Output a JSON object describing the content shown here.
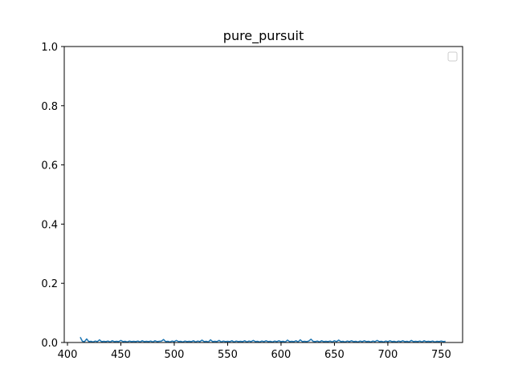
{
  "chart_data": {
    "type": "line",
    "title": "pure_pursuit",
    "xlabel": "",
    "ylabel": "",
    "xlim": [
      397,
      770
    ],
    "ylim": [
      0,
      1.0
    ],
    "x_ticks": [
      400,
      450,
      500,
      550,
      600,
      650,
      700,
      750
    ],
    "y_ticks": [
      0.0,
      0.2,
      0.4,
      0.6,
      0.8,
      1.0
    ],
    "y_tick_labels": [
      "0.0",
      "0.2",
      "0.4",
      "0.6",
      "0.8",
      "1.0"
    ],
    "grid": false,
    "legend": "upper right, empty",
    "series": [
      {
        "color": "#1f77b4",
        "x": [
          412,
          414,
          416,
          418,
          420,
          422,
          424,
          426,
          428,
          430,
          432,
          434,
          436,
          438,
          440,
          442,
          444,
          446,
          448,
          450,
          452,
          454,
          456,
          458,
          460,
          462,
          464,
          466,
          468,
          470,
          472,
          474,
          476,
          478,
          480,
          482,
          484,
          486,
          488,
          490,
          492,
          494,
          496,
          498,
          500,
          502,
          504,
          506,
          508,
          510,
          512,
          514,
          516,
          518,
          520,
          522,
          524,
          526,
          528,
          530,
          532,
          534,
          536,
          538,
          540,
          542,
          544,
          546,
          548,
          550,
          552,
          554,
          556,
          558,
          560,
          562,
          564,
          566,
          568,
          570,
          572,
          574,
          576,
          578,
          580,
          582,
          584,
          586,
          588,
          590,
          592,
          594,
          596,
          598,
          600,
          602,
          604,
          606,
          608,
          610,
          612,
          614,
          616,
          618,
          620,
          622,
          624,
          626,
          628,
          630,
          632,
          634,
          636,
          638,
          640,
          642,
          644,
          646,
          648,
          650,
          652,
          654,
          656,
          658,
          660,
          662,
          664,
          666,
          668,
          670,
          672,
          674,
          676,
          678,
          680,
          682,
          684,
          686,
          688,
          690,
          692,
          694,
          696,
          698,
          700,
          702,
          704,
          706,
          708,
          710,
          712,
          714,
          716,
          718,
          720,
          722,
          724,
          726,
          728,
          730,
          732,
          734,
          736,
          738,
          740,
          742,
          744,
          746,
          748,
          750,
          752,
          754
        ],
        "y": [
          0.018,
          0.004,
          0.003,
          0.012,
          0.003,
          0.004,
          0.002,
          0.005,
          0.003,
          0.009,
          0.003,
          0.004,
          0.003,
          0.005,
          0.002,
          0.006,
          0.003,
          0.004,
          0.003,
          0.007,
          0.003,
          0.004,
          0.002,
          0.005,
          0.003,
          0.004,
          0.003,
          0.005,
          0.002,
          0.006,
          0.003,
          0.004,
          0.003,
          0.005,
          0.002,
          0.006,
          0.003,
          0.004,
          0.005,
          0.01,
          0.003,
          0.004,
          0.002,
          0.005,
          0.003,
          0.007,
          0.003,
          0.004,
          0.002,
          0.005,
          0.003,
          0.004,
          0.003,
          0.006,
          0.002,
          0.005,
          0.003,
          0.008,
          0.003,
          0.004,
          0.002,
          0.009,
          0.003,
          0.004,
          0.003,
          0.007,
          0.002,
          0.005,
          0.003,
          0.004,
          0.003,
          0.006,
          0.002,
          0.005,
          0.003,
          0.004,
          0.003,
          0.006,
          0.002,
          0.005,
          0.003,
          0.007,
          0.003,
          0.004,
          0.002,
          0.005,
          0.003,
          0.006,
          0.003,
          0.004,
          0.002,
          0.005,
          0.003,
          0.006,
          0.003,
          0.004,
          0.002,
          0.008,
          0.003,
          0.004,
          0.003,
          0.006,
          0.002,
          0.009,
          0.003,
          0.004,
          0.003,
          0.005,
          0.011,
          0.004,
          0.003,
          0.005,
          0.002,
          0.006,
          0.003,
          0.004,
          0.003,
          0.005,
          0.002,
          0.006,
          0.003,
          0.008,
          0.003,
          0.004,
          0.002,
          0.005,
          0.003,
          0.006,
          0.003,
          0.004,
          0.002,
          0.005,
          0.003,
          0.006,
          0.003,
          0.004,
          0.002,
          0.005,
          0.003,
          0.007,
          0.003,
          0.004,
          0.002,
          0.005,
          0.003,
          0.006,
          0.003,
          0.004,
          0.002,
          0.005,
          0.003,
          0.006,
          0.003,
          0.004,
          0.002,
          0.007,
          0.003,
          0.004,
          0.003,
          0.005,
          0.002,
          0.006,
          0.003,
          0.004,
          0.003,
          0.005,
          0.002,
          0.004,
          0.003,
          0.005,
          0.003,
          0.004
        ]
      }
    ]
  }
}
